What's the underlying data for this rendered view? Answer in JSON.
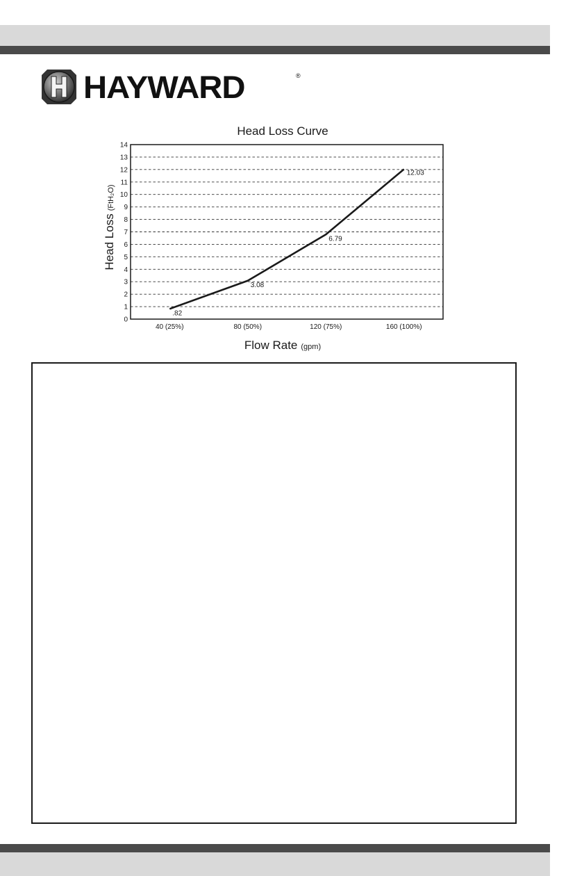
{
  "brand": {
    "name": "HAYWARD",
    "registered_mark": "®"
  },
  "colors": {
    "band": "#d9d9d9",
    "bar": "#4a4a4a",
    "line": "#1a1a1a"
  },
  "chart_data": {
    "type": "line",
    "title": "Head Loss Curve",
    "ylabel": "Head Loss",
    "ylabel_unit": "(FtH₂O)",
    "xlabel": "Flow Rate",
    "xlabel_unit": "(gpm)",
    "categories": [
      "40 (25%)",
      "80 (50%)",
      "120 (75%)",
      "160 (100%)"
    ],
    "series": [
      {
        "values": [
          0.82,
          3.08,
          6.79,
          12.03
        ],
        "labels": [
          ".82",
          "3.08",
          "6.79",
          "12.03"
        ]
      }
    ],
    "ylim": [
      0,
      14
    ],
    "yticks": [
      0,
      1,
      2,
      3,
      4,
      5,
      6,
      7,
      8,
      9,
      10,
      11,
      12,
      13,
      14
    ],
    "grid": "horizontal-dashed"
  }
}
